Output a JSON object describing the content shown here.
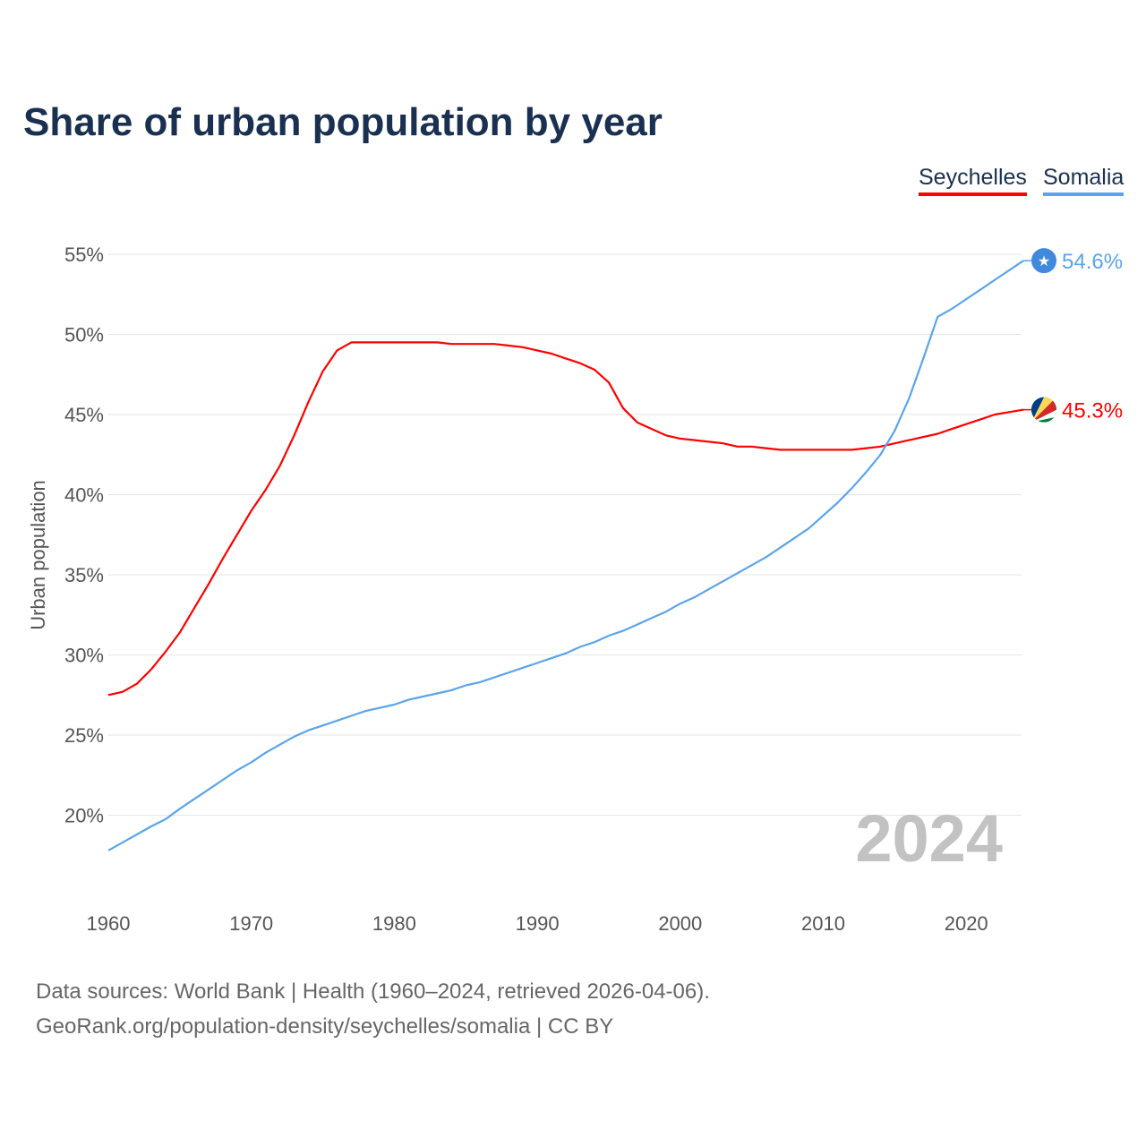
{
  "chart_data": {
    "type": "line",
    "title": "Share of urban population by year",
    "xlabel": "",
    "ylabel": "Urban population",
    "xlim": [
      1960,
      2024
    ],
    "ylim": [
      15,
      57
    ],
    "yticks": [
      20,
      25,
      30,
      35,
      40,
      45,
      50,
      55
    ],
    "ytick_labels": [
      "20%",
      "25%",
      "30%",
      "35%",
      "40%",
      "45%",
      "50%",
      "55%"
    ],
    "xticks": [
      1960,
      1970,
      1980,
      1990,
      2000,
      2010,
      2020
    ],
    "xtick_labels": [
      "1960",
      "1970",
      "1980",
      "1990",
      "2000",
      "2010",
      "2020"
    ],
    "grid": true,
    "legend_position": "top-right",
    "watermark_year": "2024",
    "x_start": 1960,
    "series": [
      {
        "name": "Seychelles",
        "color": "#ff0000",
        "end_label": "45.3%",
        "flag": "seychelles",
        "values": [
          27.5,
          27.7,
          28.2,
          29.1,
          30.2,
          31.4,
          32.9,
          34.4,
          36.0,
          37.5,
          39.0,
          40.3,
          41.8,
          43.7,
          45.8,
          47.7,
          49.0,
          49.5,
          49.5,
          49.5,
          49.5,
          49.5,
          49.5,
          49.5,
          49.4,
          49.4,
          49.4,
          49.4,
          49.3,
          49.2,
          49.0,
          48.8,
          48.5,
          48.2,
          47.8,
          47.0,
          45.4,
          44.5,
          44.1,
          43.7,
          43.5,
          43.4,
          43.3,
          43.2,
          43.0,
          43.0,
          42.9,
          42.8,
          42.8,
          42.8,
          42.8,
          42.8,
          42.8,
          42.9,
          43.0,
          43.2,
          43.4,
          43.6,
          43.8,
          44.1,
          44.4,
          44.7,
          45.0,
          45.15,
          45.3
        ]
      },
      {
        "name": "Somalia",
        "color": "#5ba4ea",
        "end_label": "54.6%",
        "flag": "somalia",
        "values": [
          17.8,
          18.3,
          18.8,
          19.3,
          19.75,
          20.4,
          21.0,
          21.6,
          22.2,
          22.8,
          23.3,
          23.9,
          24.4,
          24.9,
          25.3,
          25.6,
          25.9,
          26.2,
          26.5,
          26.7,
          26.9,
          27.2,
          27.4,
          27.6,
          27.8,
          28.1,
          28.3,
          28.6,
          28.9,
          29.2,
          29.5,
          29.8,
          30.1,
          30.5,
          30.8,
          31.2,
          31.5,
          31.9,
          32.3,
          32.7,
          33.2,
          33.6,
          34.1,
          34.6,
          35.1,
          35.6,
          36.1,
          36.7,
          37.3,
          37.9,
          38.7,
          39.5,
          40.4,
          41.4,
          42.5,
          44.0,
          46.0,
          48.5,
          51.1,
          51.6,
          52.2,
          52.8,
          53.4,
          54.0,
          54.6
        ]
      }
    ]
  },
  "footer": {
    "line1": "Data sources: World Bank | Health (1960–2024, retrieved 2026-04-06).",
    "line2": "GeoRank.org/population-density/seychelles/somalia | CC BY"
  }
}
